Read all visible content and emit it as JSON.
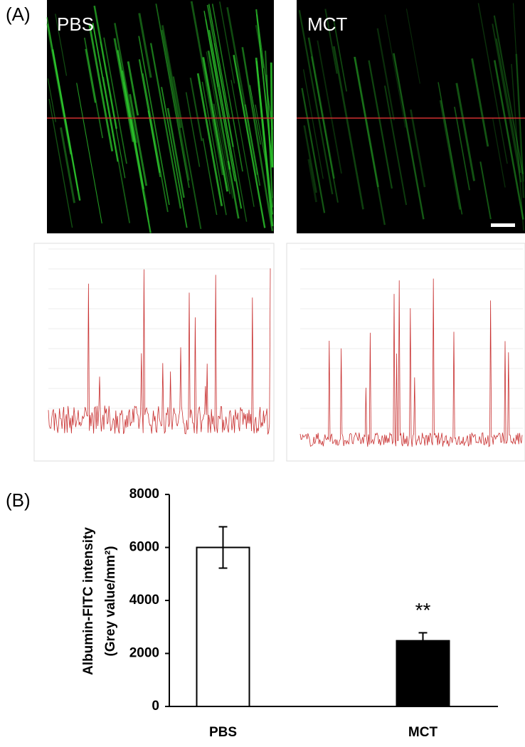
{
  "panel_a": {
    "label": "(A)",
    "images": [
      "PBS",
      "MCT"
    ]
  },
  "panel_b_label": "(B)",
  "chart_data": {
    "type": "bar",
    "ylabel": [
      "Albumin-FITC intensity",
      "(Grey value/mm²)"
    ],
    "categories": [
      "PBS",
      "MCT"
    ],
    "values": [
      6000,
      2480
    ],
    "errors": [
      780,
      300
    ],
    "colors": [
      "#ffffff",
      "#000000"
    ],
    "annotations": [
      null,
      "**"
    ],
    "ylim": [
      0,
      8000
    ],
    "yticks": [
      0,
      2000,
      4000,
      6000,
      8000
    ]
  }
}
